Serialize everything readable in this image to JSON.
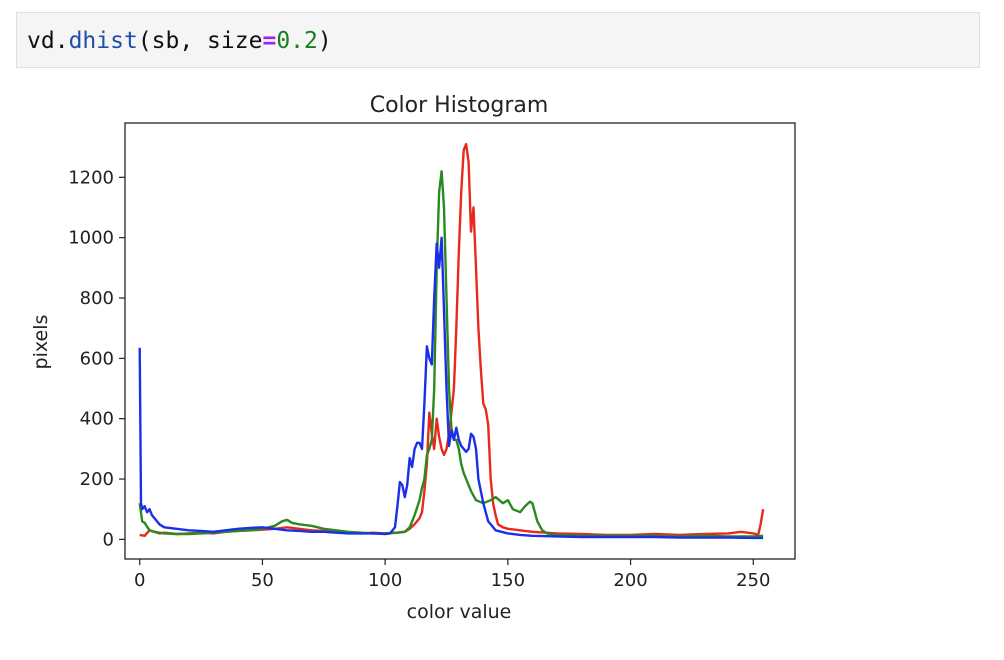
{
  "code": {
    "obj": "vd",
    "dot": ".",
    "func": "dhist",
    "open": "(",
    "arg": "sb, size",
    "op": "=",
    "num": "0.2",
    "close": ")"
  },
  "chart_data": {
    "type": "line",
    "title": "Color Histogram",
    "xlabel": "color value",
    "ylabel": "pixels",
    "xlim": [
      -6,
      267
    ],
    "ylim": [
      -65,
      1380
    ],
    "xticks": [
      0,
      50,
      100,
      150,
      200,
      250
    ],
    "yticks": [
      0,
      200,
      400,
      600,
      800,
      1000,
      1200
    ],
    "grid": false,
    "legend": "none",
    "series": [
      {
        "color": "#e8291c",
        "points": [
          [
            0,
            15
          ],
          [
            2,
            12
          ],
          [
            4,
            30
          ],
          [
            6,
            25
          ],
          [
            8,
            20
          ],
          [
            10,
            22
          ],
          [
            15,
            18
          ],
          [
            20,
            20
          ],
          [
            25,
            22
          ],
          [
            30,
            20
          ],
          [
            35,
            25
          ],
          [
            40,
            28
          ],
          [
            45,
            30
          ],
          [
            50,
            32
          ],
          [
            55,
            35
          ],
          [
            60,
            40
          ],
          [
            65,
            35
          ],
          [
            70,
            30
          ],
          [
            75,
            28
          ],
          [
            80,
            25
          ],
          [
            85,
            22
          ],
          [
            90,
            20
          ],
          [
            95,
            22
          ],
          [
            100,
            20
          ],
          [
            105,
            22
          ],
          [
            108,
            25
          ],
          [
            110,
            35
          ],
          [
            112,
            50
          ],
          [
            114,
            70
          ],
          [
            115,
            90
          ],
          [
            116,
            160
          ],
          [
            117,
            250
          ],
          [
            118,
            420
          ],
          [
            119,
            350
          ],
          [
            120,
            300
          ],
          [
            121,
            400
          ],
          [
            122,
            340
          ],
          [
            123,
            300
          ],
          [
            124,
            280
          ],
          [
            125,
            300
          ],
          [
            126,
            350
          ],
          [
            127,
            420
          ],
          [
            128,
            500
          ],
          [
            129,
            700
          ],
          [
            130,
            950
          ],
          [
            131,
            1150
          ],
          [
            132,
            1290
          ],
          [
            133,
            1310
          ],
          [
            134,
            1250
          ],
          [
            135,
            1020
          ],
          [
            136,
            1100
          ],
          [
            137,
            900
          ],
          [
            138,
            700
          ],
          [
            139,
            560
          ],
          [
            140,
            450
          ],
          [
            141,
            430
          ],
          [
            142,
            380
          ],
          [
            143,
            200
          ],
          [
            144,
            120
          ],
          [
            145,
            80
          ],
          [
            146,
            50
          ],
          [
            148,
            40
          ],
          [
            150,
            35
          ],
          [
            155,
            30
          ],
          [
            160,
            25
          ],
          [
            170,
            20
          ],
          [
            180,
            18
          ],
          [
            190,
            15
          ],
          [
            200,
            15
          ],
          [
            210,
            18
          ],
          [
            220,
            15
          ],
          [
            230,
            18
          ],
          [
            240,
            20
          ],
          [
            245,
            25
          ],
          [
            250,
            20
          ],
          [
            252,
            15
          ],
          [
            253,
            50
          ],
          [
            254,
            100
          ]
        ]
      },
      {
        "color": "#2a8a1f",
        "points": [
          [
            0,
            120
          ],
          [
            1,
            60
          ],
          [
            2,
            55
          ],
          [
            4,
            30
          ],
          [
            6,
            25
          ],
          [
            8,
            22
          ],
          [
            10,
            20
          ],
          [
            15,
            18
          ],
          [
            20,
            18
          ],
          [
            25,
            20
          ],
          [
            30,
            22
          ],
          [
            35,
            25
          ],
          [
            40,
            28
          ],
          [
            45,
            30
          ],
          [
            50,
            35
          ],
          [
            55,
            45
          ],
          [
            58,
            60
          ],
          [
            60,
            65
          ],
          [
            62,
            55
          ],
          [
            65,
            50
          ],
          [
            70,
            45
          ],
          [
            75,
            35
          ],
          [
            80,
            30
          ],
          [
            85,
            25
          ],
          [
            90,
            22
          ],
          [
            95,
            20
          ],
          [
            100,
            20
          ],
          [
            105,
            22
          ],
          [
            108,
            25
          ],
          [
            110,
            40
          ],
          [
            112,
            80
          ],
          [
            114,
            130
          ],
          [
            115,
            170
          ],
          [
            116,
            200
          ],
          [
            117,
            280
          ],
          [
            118,
            300
          ],
          [
            119,
            330
          ],
          [
            120,
            500
          ],
          [
            121,
            900
          ],
          [
            122,
            1150
          ],
          [
            123,
            1220
          ],
          [
            124,
            1100
          ],
          [
            125,
            800
          ],
          [
            126,
            500
          ],
          [
            127,
            370
          ],
          [
            128,
            330
          ],
          [
            129,
            330
          ],
          [
            130,
            300
          ],
          [
            131,
            250
          ],
          [
            132,
            220
          ],
          [
            133,
            200
          ],
          [
            134,
            180
          ],
          [
            135,
            160
          ],
          [
            137,
            130
          ],
          [
            140,
            120
          ],
          [
            143,
            130
          ],
          [
            145,
            140
          ],
          [
            148,
            120
          ],
          [
            150,
            130
          ],
          [
            152,
            100
          ],
          [
            155,
            90
          ],
          [
            157,
            110
          ],
          [
            159,
            125
          ],
          [
            160,
            120
          ],
          [
            162,
            60
          ],
          [
            164,
            30
          ],
          [
            166,
            20
          ],
          [
            170,
            15
          ],
          [
            180,
            12
          ],
          [
            190,
            12
          ],
          [
            200,
            12
          ],
          [
            210,
            12
          ],
          [
            220,
            10
          ],
          [
            230,
            12
          ],
          [
            240,
            10
          ],
          [
            250,
            10
          ],
          [
            254,
            12
          ]
        ]
      },
      {
        "color": "#1b2fe8",
        "points": [
          [
            0,
            635
          ],
          [
            0.5,
            120
          ],
          [
            1,
            100
          ],
          [
            2,
            110
          ],
          [
            3,
            90
          ],
          [
            4,
            100
          ],
          [
            5,
            80
          ],
          [
            6,
            70
          ],
          [
            8,
            50
          ],
          [
            10,
            40
          ],
          [
            15,
            35
          ],
          [
            20,
            30
          ],
          [
            25,
            28
          ],
          [
            30,
            25
          ],
          [
            35,
            30
          ],
          [
            40,
            35
          ],
          [
            45,
            38
          ],
          [
            50,
            40
          ],
          [
            55,
            35
          ],
          [
            60,
            30
          ],
          [
            65,
            28
          ],
          [
            70,
            25
          ],
          [
            75,
            25
          ],
          [
            80,
            22
          ],
          [
            85,
            20
          ],
          [
            90,
            20
          ],
          [
            95,
            20
          ],
          [
            100,
            18
          ],
          [
            102,
            20
          ],
          [
            104,
            40
          ],
          [
            105,
            110
          ],
          [
            106,
            190
          ],
          [
            107,
            180
          ],
          [
            108,
            140
          ],
          [
            109,
            180
          ],
          [
            110,
            270
          ],
          [
            111,
            240
          ],
          [
            112,
            300
          ],
          [
            113,
            320
          ],
          [
            114,
            320
          ],
          [
            115,
            300
          ],
          [
            116,
            450
          ],
          [
            117,
            640
          ],
          [
            118,
            600
          ],
          [
            119,
            580
          ],
          [
            120,
            800
          ],
          [
            121,
            980
          ],
          [
            122,
            900
          ],
          [
            123,
            1000
          ],
          [
            124,
            760
          ],
          [
            125,
            500
          ],
          [
            126,
            310
          ],
          [
            127,
            360
          ],
          [
            128,
            330
          ],
          [
            129,
            370
          ],
          [
            130,
            330
          ],
          [
            131,
            310
          ],
          [
            132,
            300
          ],
          [
            133,
            290
          ],
          [
            134,
            300
          ],
          [
            135,
            350
          ],
          [
            136,
            340
          ],
          [
            137,
            300
          ],
          [
            138,
            200
          ],
          [
            140,
            120
          ],
          [
            142,
            60
          ],
          [
            145,
            30
          ],
          [
            150,
            20
          ],
          [
            155,
            15
          ],
          [
            160,
            12
          ],
          [
            170,
            10
          ],
          [
            180,
            8
          ],
          [
            190,
            8
          ],
          [
            200,
            8
          ],
          [
            210,
            8
          ],
          [
            220,
            6
          ],
          [
            230,
            6
          ],
          [
            240,
            6
          ],
          [
            250,
            5
          ],
          [
            254,
            5
          ]
        ]
      }
    ]
  }
}
